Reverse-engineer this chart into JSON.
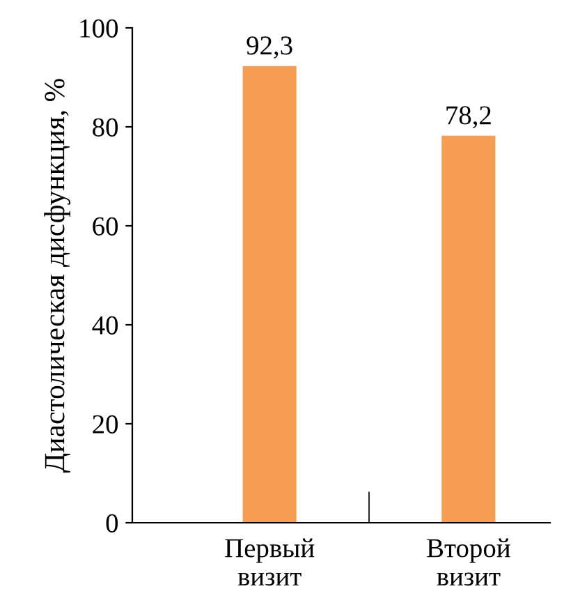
{
  "chart_data": {
    "type": "bar",
    "ylabel": "Диастолическая дисфункция, %",
    "categories": [
      "Первый\nвизит",
      "Второй\nвизит"
    ],
    "values": [
      92.3,
      78.2
    ],
    "value_labels": [
      "92,3",
      "78,2"
    ],
    "color": "#f59d52",
    "ylim": [
      0,
      100
    ],
    "yticks": [
      0,
      20,
      40,
      60,
      80,
      100
    ],
    "grid": false,
    "legend": false
  }
}
